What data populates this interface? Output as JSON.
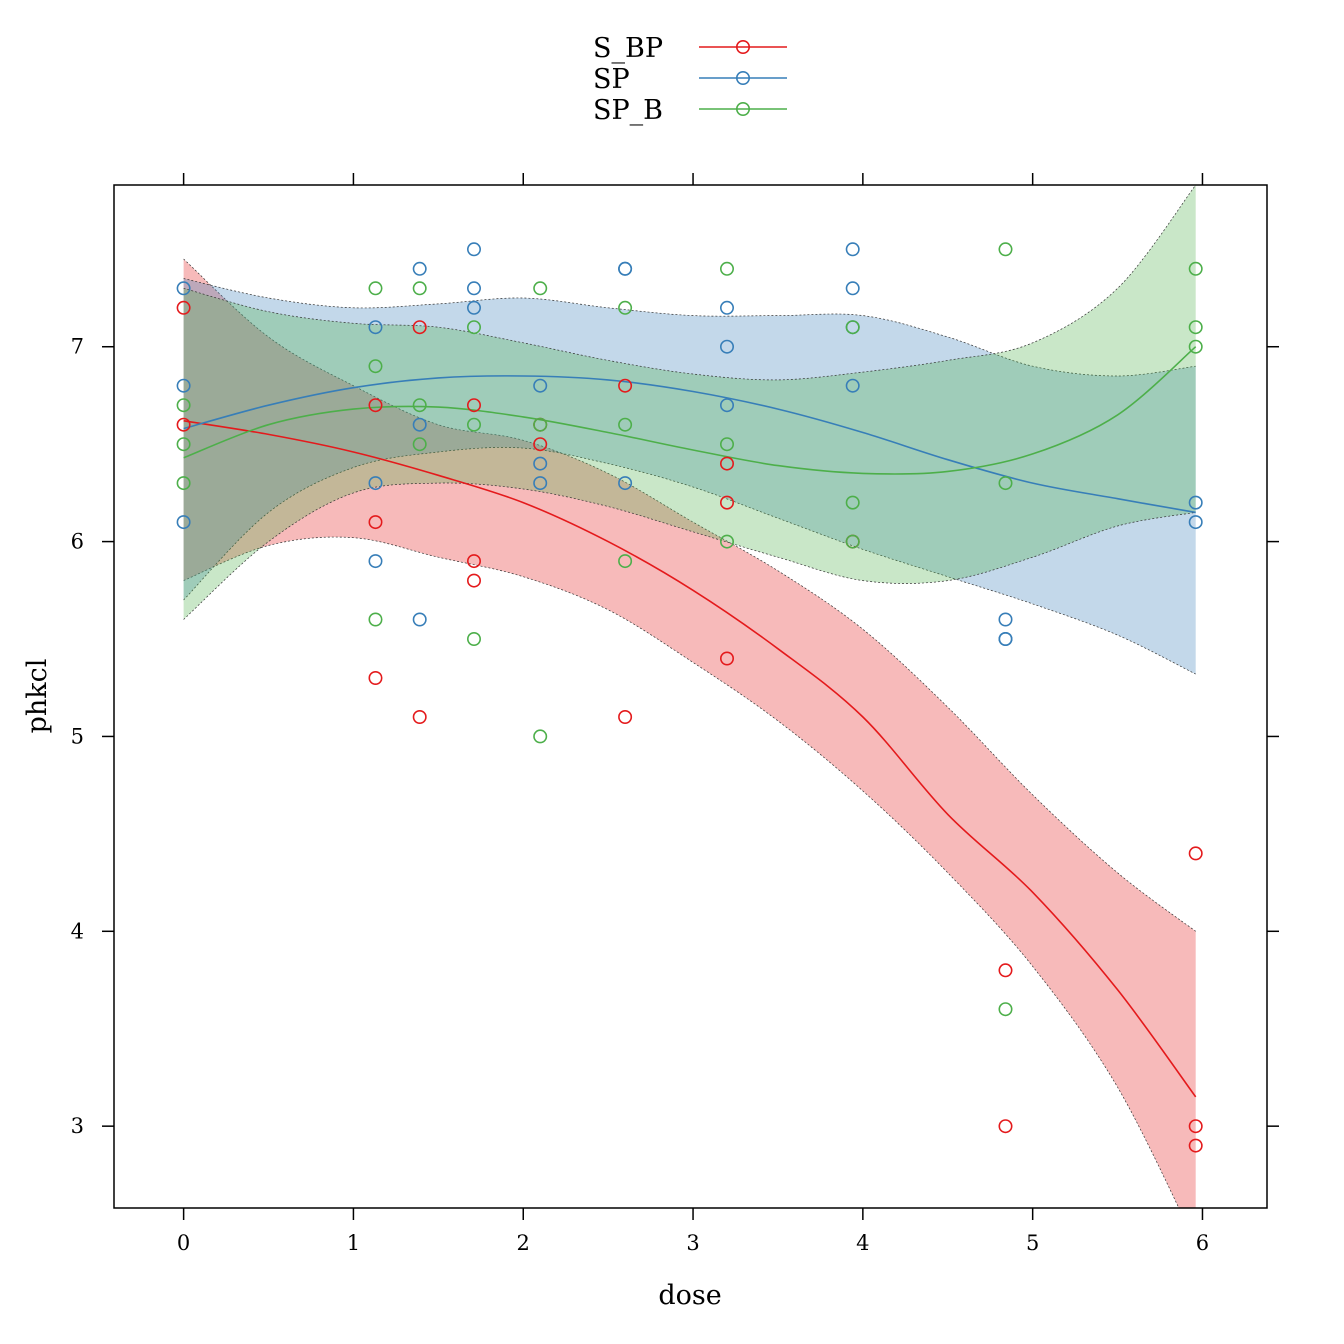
{
  "chart_data": {
    "type": "scatter",
    "xlabel": "dose",
    "ylabel": "phkcl",
    "xlim": [
      -0.41,
      6.38
    ],
    "ylim": [
      2.58,
      7.83
    ],
    "x_ticks": [
      0,
      1,
      2,
      3,
      4,
      5,
      6
    ],
    "y_ticks": [
      3,
      4,
      5,
      6,
      7
    ],
    "grid": false,
    "legend_position": "top-center",
    "series": [
      {
        "name": "S_BP",
        "color": "#e41a1c",
        "points": [
          [
            0,
            7.2
          ],
          [
            0,
            6.6
          ],
          [
            1.13,
            6.7
          ],
          [
            1.13,
            6.1
          ],
          [
            1.13,
            5.3
          ],
          [
            1.39,
            7.1
          ],
          [
            1.39,
            5.1
          ],
          [
            1.71,
            6.7
          ],
          [
            1.71,
            5.9
          ],
          [
            1.71,
            5.8
          ],
          [
            2.1,
            6.6
          ],
          [
            2.1,
            6.5
          ],
          [
            2.6,
            6.8
          ],
          [
            2.6,
            5.1
          ],
          [
            3.2,
            6.4
          ],
          [
            3.2,
            6.2
          ],
          [
            3.2,
            5.4
          ],
          [
            3.94,
            6.0
          ],
          [
            4.84,
            3.8
          ],
          [
            4.84,
            3.0
          ],
          [
            5.96,
            4.4
          ],
          [
            5.96,
            3.0
          ],
          [
            5.96,
            2.9
          ]
        ],
        "fit": [
          [
            0,
            6.62
          ],
          [
            0.5,
            6.55
          ],
          [
            1,
            6.46
          ],
          [
            1.5,
            6.34
          ],
          [
            2,
            6.2
          ],
          [
            2.5,
            6.0
          ],
          [
            3,
            5.75
          ],
          [
            3.5,
            5.45
          ],
          [
            4,
            5.1
          ],
          [
            4.5,
            4.6
          ],
          [
            5,
            4.2
          ],
          [
            5.5,
            3.7
          ],
          [
            5.96,
            3.15
          ]
        ],
        "band_upper": [
          [
            0,
            7.45
          ],
          [
            0.5,
            7.05
          ],
          [
            1,
            6.8
          ],
          [
            1.5,
            6.6
          ],
          [
            2,
            6.52
          ],
          [
            2.5,
            6.35
          ],
          [
            3,
            6.1
          ],
          [
            3.5,
            5.85
          ],
          [
            4,
            5.55
          ],
          [
            4.5,
            5.15
          ],
          [
            5,
            4.7
          ],
          [
            5.5,
            4.3
          ],
          [
            5.96,
            4.0
          ]
        ],
        "band_lower": [
          [
            0,
            5.8
          ],
          [
            0.5,
            5.98
          ],
          [
            1,
            6.02
          ],
          [
            1.5,
            5.92
          ],
          [
            2,
            5.82
          ],
          [
            2.5,
            5.65
          ],
          [
            3,
            5.38
          ],
          [
            3.5,
            5.08
          ],
          [
            4,
            4.72
          ],
          [
            4.5,
            4.3
          ],
          [
            5,
            3.82
          ],
          [
            5.5,
            3.2
          ],
          [
            5.96,
            2.4
          ]
        ]
      },
      {
        "name": "SP",
        "color": "#377eb8",
        "points": [
          [
            0,
            7.3
          ],
          [
            0,
            6.8
          ],
          [
            0,
            6.1
          ],
          [
            1.13,
            7.1
          ],
          [
            1.13,
            6.3
          ],
          [
            1.13,
            5.9
          ],
          [
            1.39,
            7.4
          ],
          [
            1.39,
            6.6
          ],
          [
            1.39,
            5.6
          ],
          [
            1.71,
            7.5
          ],
          [
            1.71,
            7.3
          ],
          [
            1.71,
            7.2
          ],
          [
            2.1,
            6.8
          ],
          [
            2.1,
            6.4
          ],
          [
            2.1,
            6.3
          ],
          [
            2.6,
            7.4
          ],
          [
            2.6,
            7.4
          ],
          [
            2.6,
            6.3
          ],
          [
            3.2,
            7.2
          ],
          [
            3.2,
            7.0
          ],
          [
            3.2,
            6.7
          ],
          [
            3.94,
            7.5
          ],
          [
            3.94,
            7.3
          ],
          [
            3.94,
            7.1
          ],
          [
            3.94,
            6.8
          ],
          [
            4.84,
            5.6
          ],
          [
            4.84,
            5.5
          ],
          [
            4.84,
            5.5
          ],
          [
            5.96,
            6.2
          ],
          [
            5.96,
            6.1
          ]
        ],
        "fit": [
          [
            0,
            6.58
          ],
          [
            0.5,
            6.7
          ],
          [
            1,
            6.79
          ],
          [
            1.5,
            6.84
          ],
          [
            2,
            6.85
          ],
          [
            2.5,
            6.83
          ],
          [
            3,
            6.77
          ],
          [
            3.5,
            6.68
          ],
          [
            4,
            6.56
          ],
          [
            4.5,
            6.42
          ],
          [
            5,
            6.3
          ],
          [
            5.5,
            6.22
          ],
          [
            5.96,
            6.15
          ]
        ],
        "band_upper": [
          [
            0,
            7.35
          ],
          [
            0.5,
            7.25
          ],
          [
            1,
            7.2
          ],
          [
            1.5,
            7.22
          ],
          [
            2,
            7.25
          ],
          [
            2.5,
            7.2
          ],
          [
            3,
            7.16
          ],
          [
            3.5,
            7.16
          ],
          [
            4,
            7.16
          ],
          [
            4.5,
            7.05
          ],
          [
            5,
            6.9
          ],
          [
            5.5,
            6.85
          ],
          [
            5.96,
            6.9
          ]
        ],
        "band_lower": [
          [
            0,
            5.7
          ],
          [
            0.5,
            6.15
          ],
          [
            1,
            6.38
          ],
          [
            1.5,
            6.46
          ],
          [
            2,
            6.48
          ],
          [
            2.5,
            6.4
          ],
          [
            3,
            6.28
          ],
          [
            3.5,
            6.12
          ],
          [
            4,
            5.96
          ],
          [
            4.5,
            5.82
          ],
          [
            5,
            5.68
          ],
          [
            5.5,
            5.52
          ],
          [
            5.96,
            5.32
          ]
        ]
      },
      {
        "name": "SP_B",
        "color": "#4daf4a",
        "points": [
          [
            0,
            6.7
          ],
          [
            0,
            6.5
          ],
          [
            0,
            6.3
          ],
          [
            1.13,
            7.3
          ],
          [
            1.13,
            6.9
          ],
          [
            1.13,
            5.6
          ],
          [
            1.39,
            7.3
          ],
          [
            1.39,
            6.7
          ],
          [
            1.39,
            6.5
          ],
          [
            1.71,
            7.1
          ],
          [
            1.71,
            6.6
          ],
          [
            1.71,
            5.5
          ],
          [
            2.1,
            7.3
          ],
          [
            2.1,
            6.6
          ],
          [
            2.1,
            5.0
          ],
          [
            2.6,
            7.2
          ],
          [
            2.6,
            6.6
          ],
          [
            2.6,
            5.9
          ],
          [
            3.2,
            7.4
          ],
          [
            3.2,
            6.5
          ],
          [
            3.2,
            6.0
          ],
          [
            3.94,
            7.1
          ],
          [
            3.94,
            6.2
          ],
          [
            3.94,
            6.0
          ],
          [
            4.84,
            7.5
          ],
          [
            4.84,
            6.3
          ],
          [
            4.84,
            3.6
          ],
          [
            5.96,
            7.4
          ],
          [
            5.96,
            7.1
          ],
          [
            5.96,
            7.0
          ]
        ],
        "fit": [
          [
            0,
            6.43
          ],
          [
            0.5,
            6.6
          ],
          [
            1,
            6.68
          ],
          [
            1.5,
            6.69
          ],
          [
            2,
            6.64
          ],
          [
            2.5,
            6.56
          ],
          [
            3,
            6.47
          ],
          [
            3.5,
            6.39
          ],
          [
            4,
            6.35
          ],
          [
            4.5,
            6.36
          ],
          [
            5,
            6.45
          ],
          [
            5.5,
            6.65
          ],
          [
            5.96,
            7.0
          ]
        ],
        "band_upper": [
          [
            0,
            7.3
          ],
          [
            0.5,
            7.18
          ],
          [
            1,
            7.12
          ],
          [
            1.5,
            7.1
          ],
          [
            2,
            7.02
          ],
          [
            2.5,
            6.93
          ],
          [
            3,
            6.86
          ],
          [
            3.5,
            6.83
          ],
          [
            4,
            6.87
          ],
          [
            4.5,
            6.93
          ],
          [
            5,
            7.02
          ],
          [
            5.5,
            7.3
          ],
          [
            5.96,
            7.83
          ]
        ],
        "band_lower": [
          [
            0,
            5.6
          ],
          [
            0.5,
            6.0
          ],
          [
            1,
            6.25
          ],
          [
            1.5,
            6.3
          ],
          [
            2,
            6.27
          ],
          [
            2.5,
            6.18
          ],
          [
            3,
            6.05
          ],
          [
            3.5,
            5.92
          ],
          [
            4,
            5.8
          ],
          [
            4.5,
            5.8
          ],
          [
            5,
            5.92
          ],
          [
            5.5,
            6.08
          ],
          [
            5.96,
            6.15
          ]
        ]
      }
    ]
  }
}
